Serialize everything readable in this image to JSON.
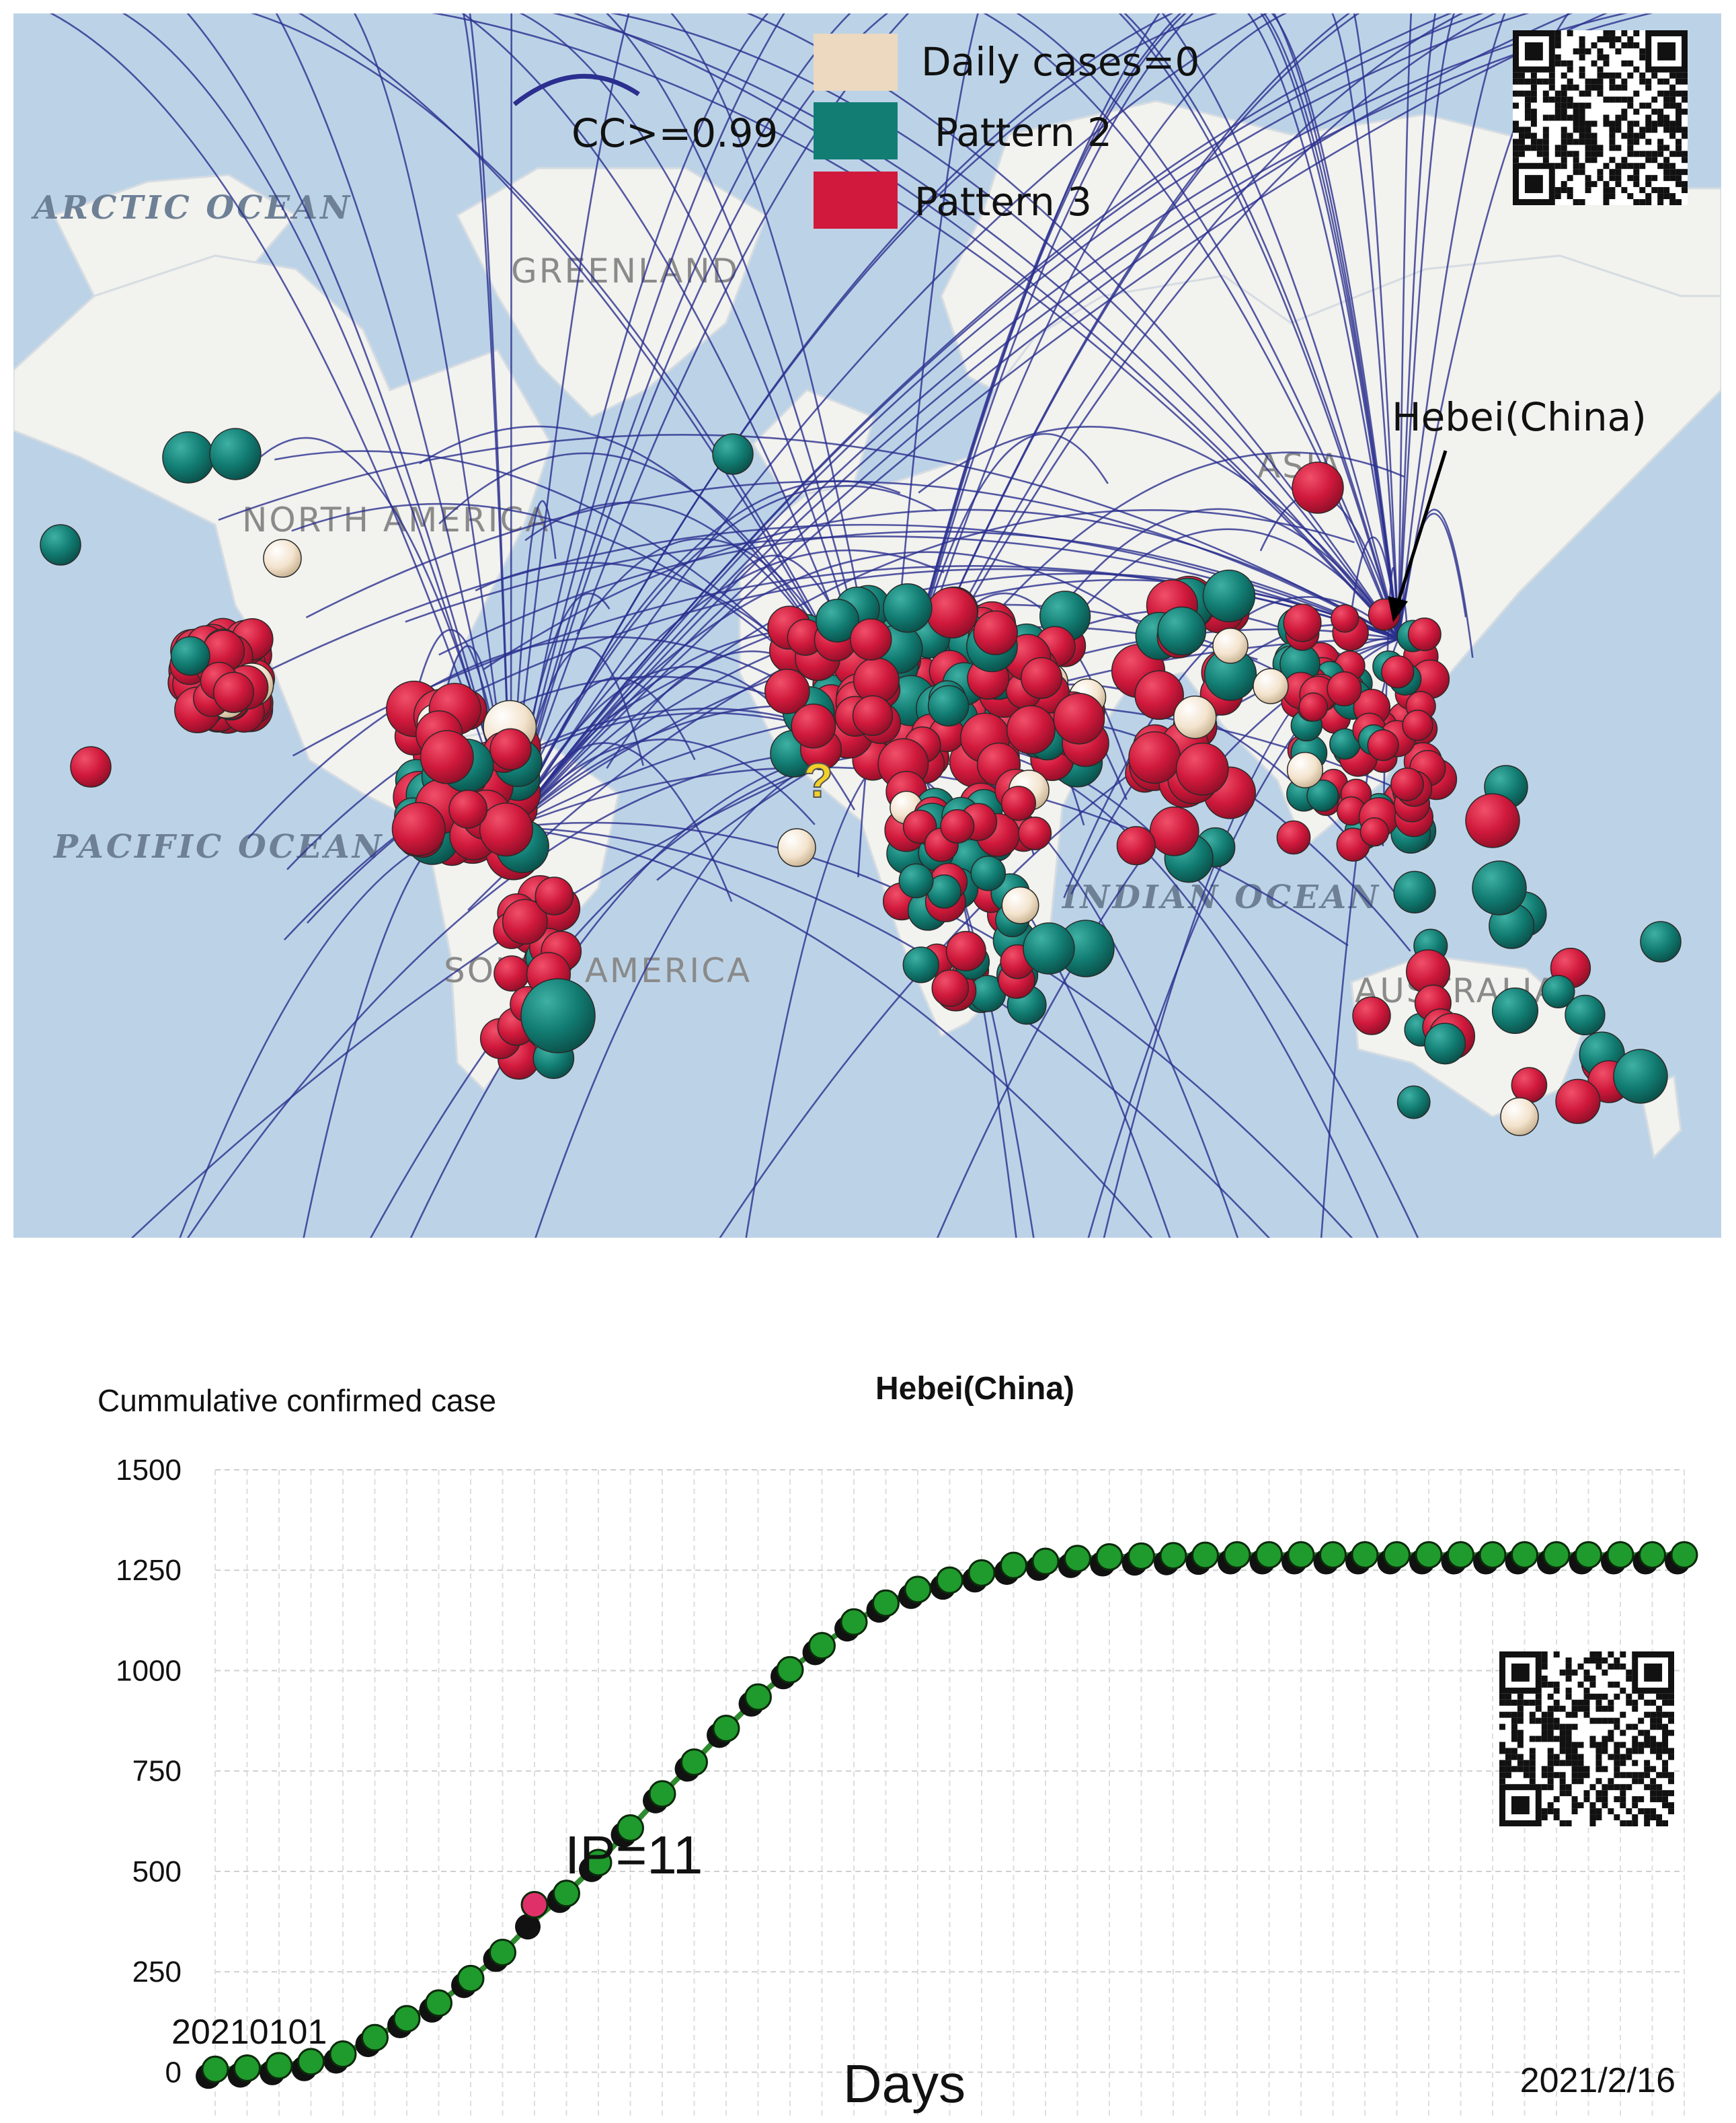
{
  "map": {
    "ocean_labels": {
      "arctic": "ARCTIC OCEAN",
      "pacific": "PACIFIC OCEAN",
      "indian": "INDIAN OCEAN"
    },
    "continent_labels": {
      "greenland": "GREENLAND",
      "north_america": "NORTH AMERICA",
      "south_america": "SOUTH AMERICA",
      "australia": "AUSTRALIA",
      "asia": "ASIA"
    },
    "legend": {
      "line_label": "CC>=0.99",
      "items": [
        {
          "label": "Daily cases=0",
          "color": "#ecd9bf"
        },
        {
          "label": "Pattern 2",
          "color": "#127d73"
        },
        {
          "label": "Pattern 3",
          "color": "#d0193c"
        }
      ]
    },
    "hub_annotation": "Hebei(China)",
    "unknown_marker": "?",
    "colors": {
      "ocean": "#bcd3e7",
      "land": "#f2f2ee",
      "line": "#2b2f8f",
      "qr_icon": "qr-code-icon"
    }
  },
  "chart_data": {
    "type": "scatter",
    "title": "Hebei(China)",
    "ylabel": "Cummulative confirmed case",
    "xlabel": "Days",
    "x_start_label": "20210101",
    "x_end_label": "2021/2/16",
    "yticks": [
      "1500",
      "1250",
      "1000",
      "750",
      "500",
      "250",
      "0"
    ],
    "ylim": [
      -150,
      1500
    ],
    "x": [
      1,
      2,
      3,
      4,
      5,
      6,
      7,
      8,
      9,
      10,
      11,
      12,
      13,
      14,
      15,
      16,
      17,
      18,
      19,
      20,
      21,
      22,
      23,
      24,
      25,
      26,
      27,
      28,
      29,
      30,
      31,
      32,
      33,
      34,
      35,
      36,
      37,
      38,
      39,
      40,
      41,
      42,
      43,
      44,
      45,
      46,
      47
    ],
    "series": [
      {
        "values": [
          7,
          10,
          16,
          26,
          45,
          86,
          133,
          172,
          233,
          298,
          379,
          445,
          522,
          608,
          693,
          772,
          856,
          934,
          1002,
          1062,
          1121,
          1168,
          1202,
          1225,
          1243,
          1262,
          1272,
          1279,
          1283,
          1285,
          1286,
          1287,
          1288,
          1288,
          1288,
          1288,
          1288,
          1288,
          1288,
          1288,
          1288,
          1288,
          1288,
          1288,
          1288,
          1288,
          1288
        ],
        "color": "#2e8b2e"
      }
    ],
    "highlight": {
      "x": 11,
      "value": 417,
      "label": "IP=11",
      "color": "#e0306a"
    },
    "grid": "on"
  }
}
